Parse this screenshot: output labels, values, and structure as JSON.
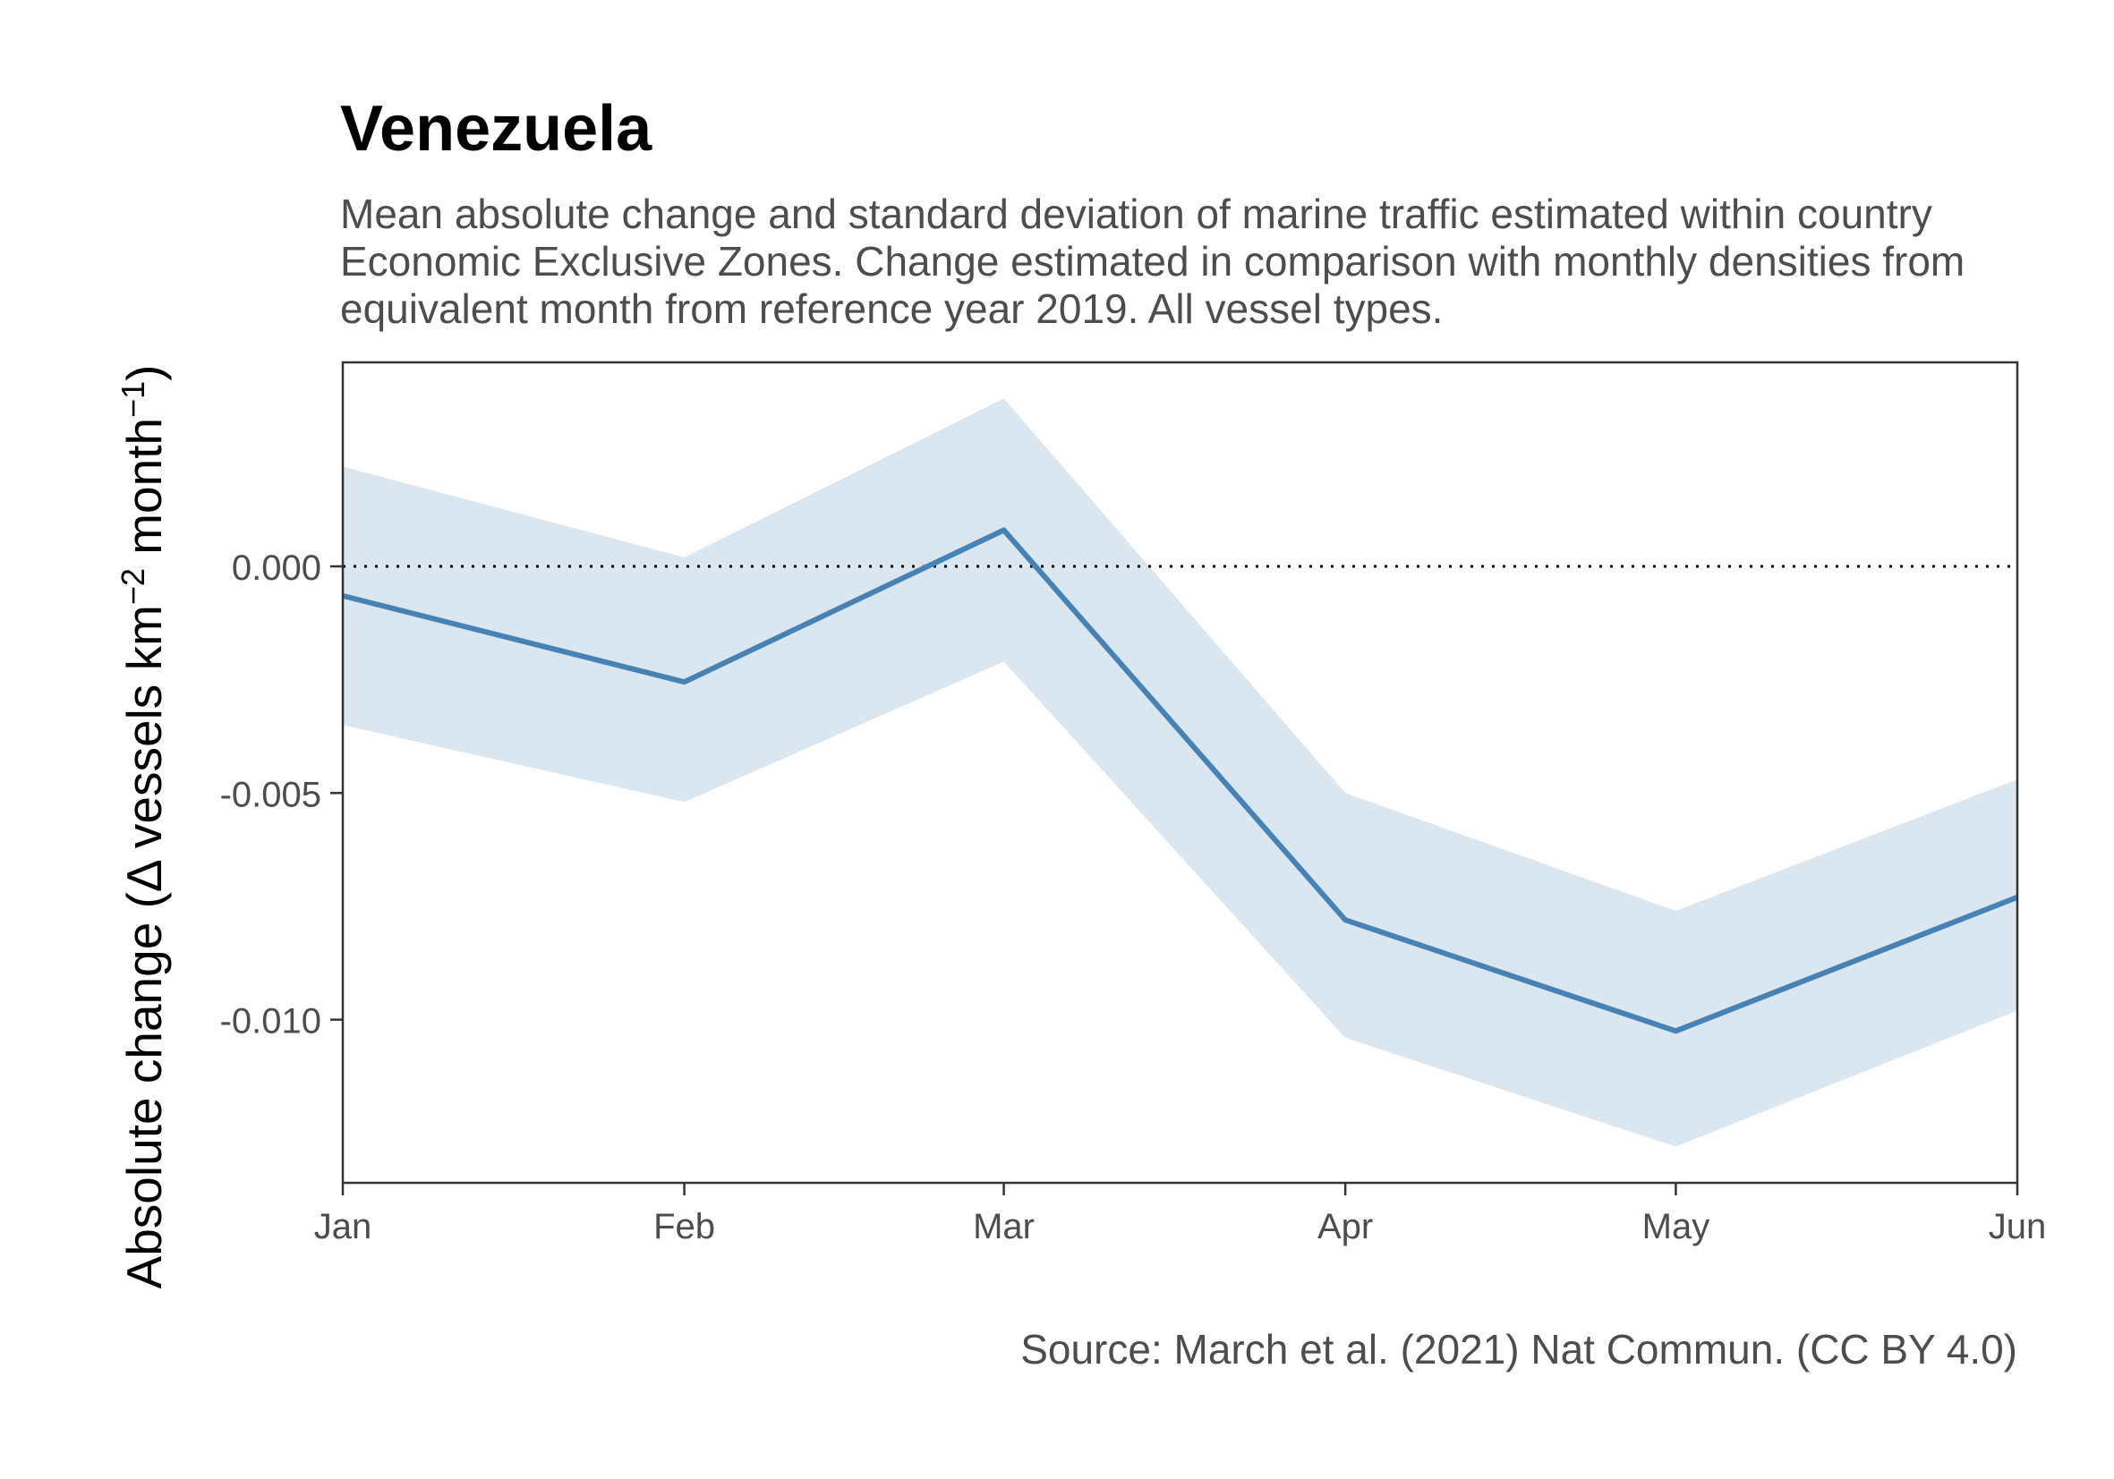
{
  "chart_data": {
    "type": "line",
    "title": "Venezuela",
    "subtitle": "Mean absolute change and standard deviation of marine traffic estimated within country Economic Exclusive Zones. Change estimated in comparison with monthly densities from equivalent month from reference year 2019. All vessel types.",
    "caption": "Source: March et al. (2021) Nat Commun. (CC BY 4.0)",
    "xlabel": "",
    "ylabel": {
      "prefix": "Absolute change (",
      "delta": "Δ",
      "main": " vessels km",
      "exp1": "−2",
      "mid": " month",
      "exp2": "−1",
      "suffix": ")"
    },
    "categories": [
      "Jan",
      "Feb",
      "Mar",
      "Apr",
      "May",
      "Jun"
    ],
    "x_positions": [
      "2020-01-01",
      "2020-02-01",
      "2020-03-01",
      "2020-04-01",
      "2020-05-01",
      "2020-06-01"
    ],
    "series": [
      {
        "mean": [
          -0.00065,
          -0.00255,
          0.0008,
          -0.0078,
          -0.01025,
          -0.0073
        ],
        "sd_upper": [
          0.0022,
          0.0002,
          0.0037,
          -0.005,
          -0.0076,
          -0.0047
        ],
        "sd_lower": [
          -0.0035,
          -0.0052,
          -0.0021,
          -0.0104,
          -0.0128,
          -0.0098
        ]
      }
    ],
    "yticks": [
      0.0,
      -0.005,
      -0.01
    ],
    "ytick_labels": [
      "0.000",
      "-0.005",
      "-0.010"
    ],
    "ylim": [
      -0.0136,
      0.0045
    ],
    "reference_line": 0,
    "grid": false,
    "colors": {
      "line": "#4682b4",
      "ribbon": "#dae6f0",
      "axis": "#333333",
      "text": "#4d4d4d"
    }
  }
}
